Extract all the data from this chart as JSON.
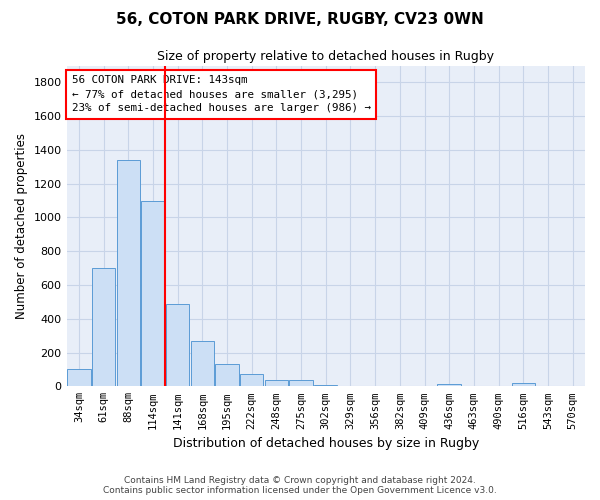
{
  "title": "56, COTON PARK DRIVE, RUGBY, CV23 0WN",
  "subtitle": "Size of property relative to detached houses in Rugby",
  "xlabel": "Distribution of detached houses by size in Rugby",
  "ylabel": "Number of detached properties",
  "bar_labels": [
    "34sqm",
    "61sqm",
    "88sqm",
    "114sqm",
    "141sqm",
    "168sqm",
    "195sqm",
    "222sqm",
    "248sqm",
    "275sqm",
    "302sqm",
    "329sqm",
    "356sqm",
    "382sqm",
    "409sqm",
    "436sqm",
    "463sqm",
    "490sqm",
    "516sqm",
    "543sqm",
    "570sqm"
  ],
  "bar_values": [
    100,
    700,
    1340,
    1100,
    490,
    270,
    135,
    70,
    35,
    35,
    5,
    0,
    0,
    0,
    0,
    15,
    0,
    0,
    20,
    0,
    0
  ],
  "bar_color": "#ccdff5",
  "bar_edge_color": "#5b9bd5",
  "vline_x_index": 4,
  "vline_color": "red",
  "annotation_text": "56 COTON PARK DRIVE: 143sqm\n← 77% of detached houses are smaller (3,295)\n23% of semi-detached houses are larger (986) →",
  "annotation_box_color": "white",
  "annotation_box_edge": "red",
  "ylim": [
    0,
    1900
  ],
  "yticks": [
    0,
    200,
    400,
    600,
    800,
    1000,
    1200,
    1400,
    1600,
    1800
  ],
  "grid_color": "#c8d4e8",
  "background_color": "#e8eef8",
  "footer_line1": "Contains HM Land Registry data © Crown copyright and database right 2024.",
  "footer_line2": "Contains public sector information licensed under the Open Government Licence v3.0."
}
